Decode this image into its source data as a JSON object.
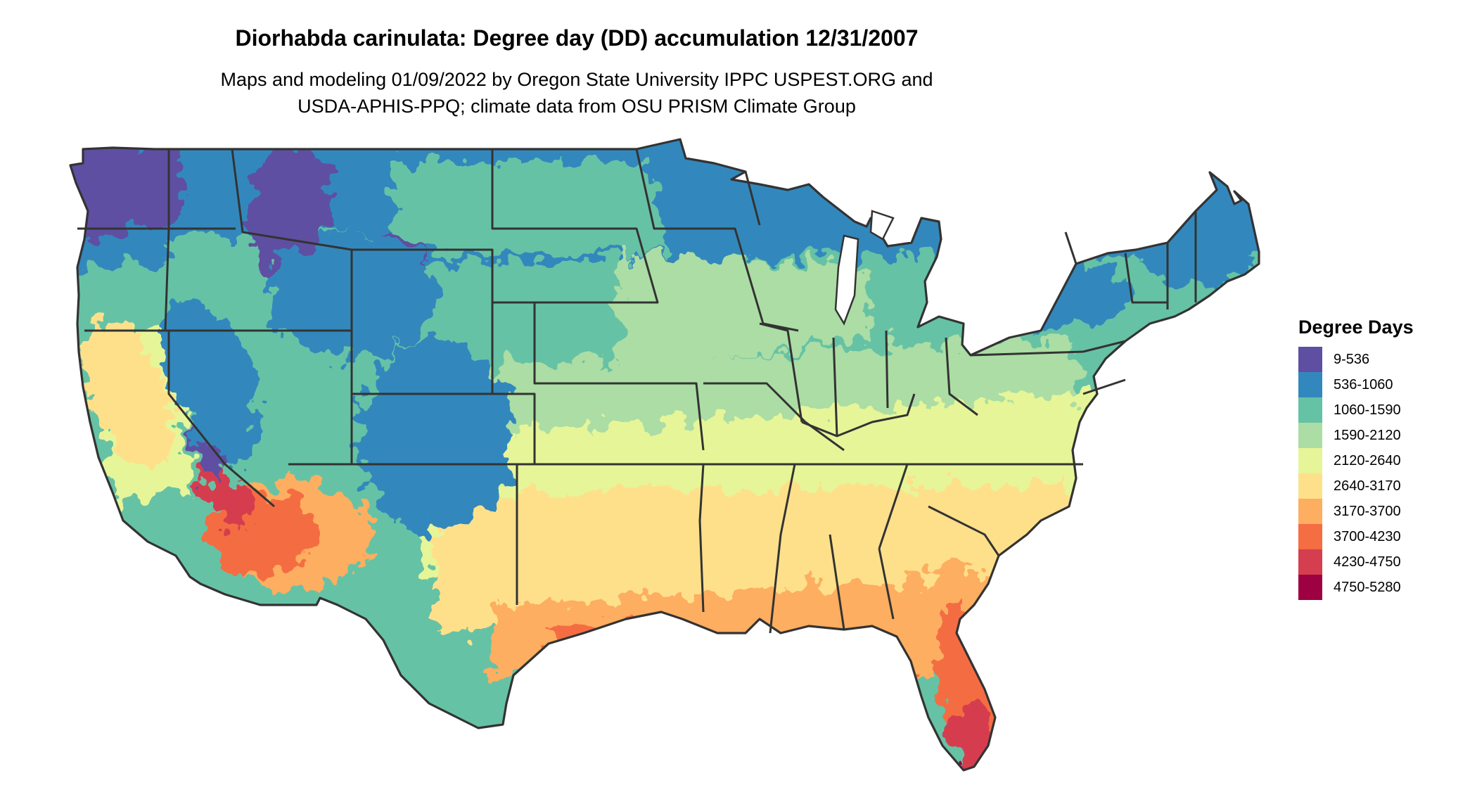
{
  "title": "Diorhabda carinulata: Degree day (DD) accumulation 12/31/2007",
  "subtitle": [
    "Maps and modeling 01/09/2022 by Oregon State University IPPC USPEST.ORG and",
    "USDA-APHIS-PPQ; climate data from OSU PRISM Climate Group"
  ],
  "legend": {
    "title": "Degree Days",
    "classes": [
      {
        "label": "9-536",
        "color": "#5e4fa2"
      },
      {
        "label": "536-1060",
        "color": "#3288bd"
      },
      {
        "label": "1060-1590",
        "color": "#66c2a5"
      },
      {
        "label": "1590-2120",
        "color": "#abdda4"
      },
      {
        "label": "2120-2640",
        "color": "#e6f598"
      },
      {
        "label": "2640-3170",
        "color": "#fee08b"
      },
      {
        "label": "3170-3700",
        "color": "#fdae61"
      },
      {
        "label": "3700-4230",
        "color": "#f46d43"
      },
      {
        "label": "4230-4750",
        "color": "#d53e4f"
      },
      {
        "label": "4750-5280",
        "color": "#9e0142"
      }
    ]
  },
  "map": {
    "region": "contiguous-united-states",
    "border_color": "#333333"
  }
}
